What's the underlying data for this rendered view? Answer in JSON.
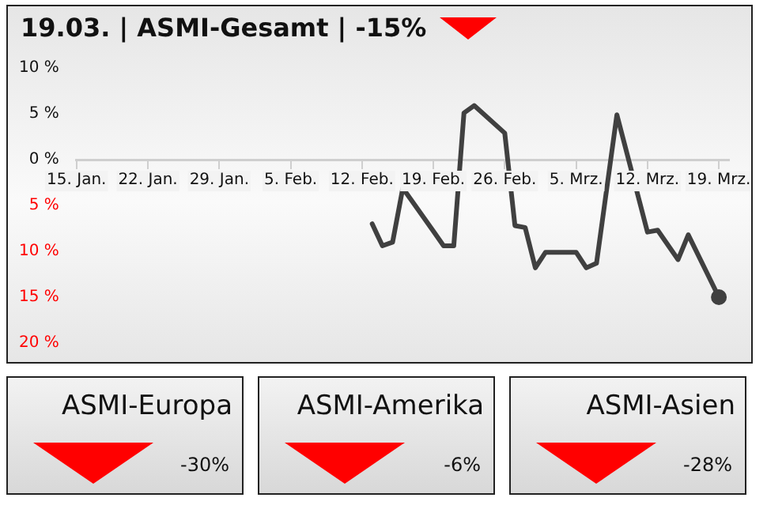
{
  "chart_data": [
    {
      "type": "line",
      "title": "19.03. | ASMI-Gesamt | -15%",
      "series": [
        {
          "color": "#404040",
          "x": [
            "--02-13",
            "--02-14",
            "--02-15",
            "--02-16",
            "--02-19",
            "--02-20",
            "--02-21",
            "--02-22",
            "--02-23",
            "--02-26",
            "--02-27",
            "--02-28",
            "--03-01",
            "--03-02",
            "--03-05",
            "--03-06",
            "--03-07",
            "--03-09",
            "--03-12",
            "--03-13",
            "--03-15",
            "--03-16",
            "--03-19"
          ],
          "values": [
            -7.0,
            -9.4,
            -9.0,
            -3.1,
            -7.8,
            -9.4,
            -9.4,
            5.1,
            5.9,
            2.9,
            -7.2,
            -7.4,
            -11.8,
            -10.1,
            -10.1,
            -11.8,
            -11.3,
            4.9,
            -7.9,
            -7.7,
            -10.9,
            -8.2,
            -15
          ]
        },
        {
          "type": "scatter",
          "color": "#404040",
          "marker": "circle",
          "x": [
            "--03-19"
          ],
          "values": [
            -15
          ]
        }
      ],
      "marker": "none",
      "line_style": "solid",
      "legend": false,
      "grid": false,
      "xlim": [
        "--01-15",
        "--03-20"
      ],
      "xticks": [
        {
          "value": "--01-15",
          "label": "15. Jan."
        },
        {
          "value": "--01-22",
          "label": "22. Jan."
        },
        {
          "value": "--01-29",
          "label": "29. Jan."
        },
        {
          "value": "--02-05",
          "label": "5. Feb."
        },
        {
          "value": "--02-12",
          "label": "12. Feb."
        },
        {
          "value": "--02-19",
          "label": "19. Feb."
        },
        {
          "value": "--02-26",
          "label": "26. Feb."
        },
        {
          "value": "--03-05",
          "label": "5. Mrz."
        },
        {
          "value": "--03-12",
          "label": "12. Mrz."
        },
        {
          "value": "--03-19",
          "label": "19. Mrz."
        }
      ],
      "ylim": [
        -20,
        10
      ],
      "yticks": [
        {
          "value": 10,
          "label": "10 %"
        },
        {
          "value": 5,
          "label": "5 %"
        },
        {
          "value": 0,
          "label": "0 %"
        },
        {
          "value": -5,
          "label": "5 %"
        },
        {
          "value": -10,
          "label": "10 %"
        },
        {
          "value": -15,
          "label": "15 %"
        },
        {
          "value": -20,
          "label": "20 %"
        }
      ]
    },
    {
      "type": "other",
      "title": "ASMI-Europa",
      "annotations": [
        "-30%"
      ]
    },
    {
      "type": "other",
      "title": "ASMI-Amerika",
      "annotations": [
        "-6%"
      ]
    },
    {
      "type": "other",
      "title": "ASMI-Asien",
      "annotations": [
        "-28%"
      ]
    }
  ]
}
